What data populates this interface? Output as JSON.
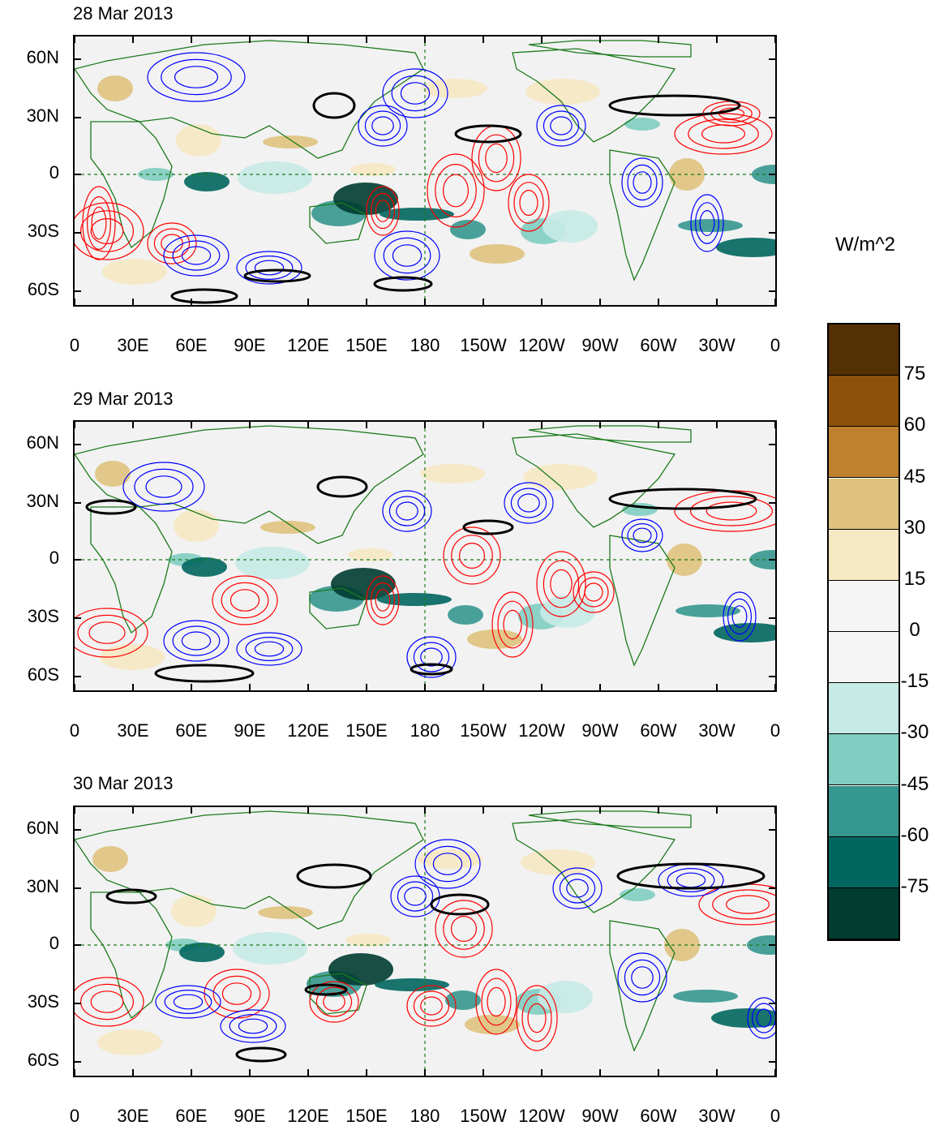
{
  "panels": [
    {
      "date": "28 Mar 2013"
    },
    {
      "date": "29 Mar 2013"
    },
    {
      "date": "30 Mar 2013"
    }
  ],
  "lat_labels": [
    "60N",
    "30N",
    "0",
    "30S",
    "60S"
  ],
  "lon_labels": [
    "0",
    "30E",
    "60E",
    "90E",
    "120E",
    "150E",
    "180",
    "150W",
    "120W",
    "90W",
    "60W",
    "30W",
    "0"
  ],
  "colorbar": {
    "units": "W/m^2",
    "labels": [
      "75",
      "60",
      "45",
      "30",
      "15",
      "0",
      "-15",
      "-30",
      "-45",
      "-60",
      "-75"
    ],
    "colors": [
      "#543005",
      "#8c510a",
      "#bf812d",
      "#dfc27d",
      "#f6e8c3",
      "#f5f5f5",
      "#f5f5f5",
      "#c7eae5",
      "#80cdc1",
      "#35978f",
      "#01665e",
      "#003c30"
    ]
  },
  "colors": {
    "positive_contour": "#ff0000",
    "negative_contour": "#0000ff",
    "jet_contour": "#000000",
    "coastline": "#1b7a1b",
    "ocean": "#f2f2f2"
  }
}
